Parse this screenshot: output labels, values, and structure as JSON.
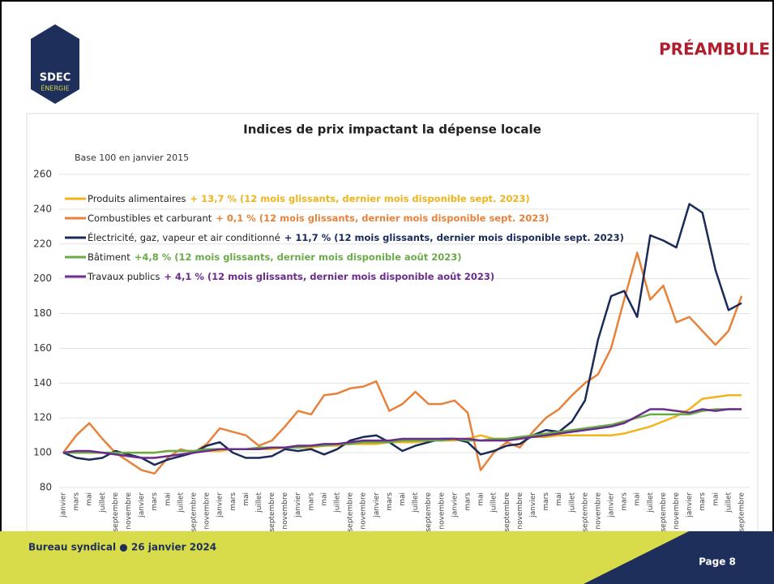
{
  "header": {
    "title": "PRÉAMBULE",
    "logo": [
      "SDEC",
      "ÉNERGIE"
    ]
  },
  "footer": {
    "text": "Bureau syndical ● 26 janvier 2024",
    "page": "Page 8"
  },
  "chart_data": {
    "type": "line",
    "title": "Indices de prix impactant la dépense locale",
    "subtitle": "Base 100 en janvier 2015",
    "categories": [
      "janvier",
      "mars",
      "mai",
      "juillet",
      "septembre",
      "novembre",
      "janvier",
      "mars",
      "mai",
      "juillet",
      "septembre",
      "novembre",
      "janvier",
      "mars",
      "mai",
      "juillet",
      "septembre",
      "novembre",
      "janvier",
      "mars",
      "mai",
      "juillet",
      "septembre",
      "novembre",
      "janvier",
      "mars",
      "mai",
      "juillet",
      "septembre",
      "novembre",
      "janvier",
      "mars",
      "mai",
      "juillet",
      "septembre",
      "novembre",
      "janvier",
      "mars",
      "mai",
      "juillet",
      "septembre",
      "novembre",
      "janvier",
      "mars",
      "mai",
      "juillet",
      "septembre",
      "novembre",
      "janvier",
      "mars",
      "mai",
      "juillet",
      "septembre"
    ],
    "ylim": [
      80,
      260
    ],
    "yticks": [
      80,
      100,
      120,
      140,
      160,
      180,
      200,
      220,
      240,
      260
    ],
    "grid": true,
    "series": [
      {
        "name": "Produits alimentaires",
        "color": "#f0b41c",
        "values": [
          100,
          100,
          100,
          100,
          100,
          100,
          100,
          100,
          101,
          101,
          101,
          101,
          101,
          102,
          102,
          102,
          102,
          103,
          103,
          103,
          104,
          104,
          105,
          105,
          105,
          106,
          106,
          106,
          107,
          107,
          107,
          108,
          110,
          108,
          108,
          109,
          109,
          109,
          110,
          110,
          110,
          110,
          110,
          111,
          113,
          115,
          118,
          121,
          125,
          131,
          132,
          133,
          133
        ]
      },
      {
        "name": "Combustibles et carburant",
        "color": "#e8823a",
        "values": [
          100,
          110,
          117,
          108,
          100,
          95,
          90,
          88,
          97,
          102,
          100,
          105,
          114,
          112,
          110,
          104,
          107,
          115,
          124,
          122,
          133,
          134,
          137,
          138,
          141,
          124,
          128,
          135,
          128,
          128,
          130,
          123,
          90,
          100,
          106,
          103,
          112,
          120,
          125,
          133,
          140,
          145,
          160,
          188,
          215,
          188,
          196,
          175,
          178,
          170,
          162,
          170,
          190
        ]
      },
      {
        "name": "Électricité, gaz, vapeur et air conditionné",
        "color": "#1a2b5a",
        "values": [
          100,
          97,
          96,
          97,
          101,
          99,
          97,
          93,
          96,
          98,
          100,
          104,
          106,
          100,
          97,
          97,
          98,
          102,
          101,
          102,
          99,
          102,
          107,
          109,
          110,
          106,
          101,
          104,
          106,
          108,
          108,
          106,
          99,
          101,
          104,
          105,
          110,
          113,
          112,
          118,
          130,
          165,
          190,
          193,
          178,
          225,
          222,
          218,
          243,
          238,
          205,
          182,
          186
        ]
      },
      {
        "name": "Bâtiment",
        "color": "#6aab48",
        "values": [
          100,
          100,
          100,
          100,
          100,
          100,
          100,
          100,
          101,
          101,
          101,
          102,
          102,
          102,
          102,
          103,
          103,
          103,
          103,
          104,
          104,
          105,
          105,
          106,
          106,
          106,
          107,
          107,
          107,
          107,
          108,
          107,
          107,
          108,
          108,
          109,
          110,
          111,
          112,
          113,
          114,
          115,
          116,
          118,
          120,
          122,
          122,
          122,
          122,
          124,
          125,
          125,
          125
        ]
      },
      {
        "name": "Travaux publics",
        "color": "#6b2d8c",
        "values": [
          100,
          101,
          101,
          100,
          99,
          98,
          97,
          97,
          98,
          99,
          100,
          101,
          102,
          102,
          102,
          102,
          103,
          103,
          104,
          104,
          105,
          105,
          106,
          107,
          107,
          107,
          108,
          108,
          108,
          108,
          108,
          108,
          107,
          107,
          107,
          108,
          109,
          110,
          111,
          112,
          113,
          114,
          115,
          117,
          121,
          125,
          125,
          124,
          123,
          125,
          124,
          125,
          125
        ]
      }
    ],
    "annotations": [
      "+ 13,7 % (12 mois glissants, dernier mois disponible sept. 2023)",
      "+ 0,1 % (12 mois glissants, dernier mois disponible sept. 2023)",
      "+ 11,7 % (12 mois glissants, dernier mois disponible sept. 2023)",
      "+4,8 % (12 mois glissants, dernier mois disponible août 2023)",
      "+ 4,1 % (12 mois glissants, dernier mois disponible août 2023)"
    ]
  }
}
